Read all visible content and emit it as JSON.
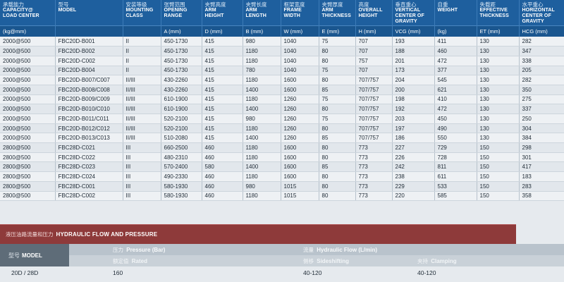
{
  "spec_table": {
    "headers": [
      {
        "cn": "承载能力",
        "en": [
          "CAPACITY@",
          "LOAD CENTER"
        ]
      },
      {
        "cn": "型号",
        "en": [
          "MODEL"
        ]
      },
      {
        "cn": "安装等级",
        "en": [
          "MOUNTING",
          "CLASS"
        ]
      },
      {
        "cn": "张臂范围",
        "en": [
          "OPENING",
          "RANGE"
        ]
      },
      {
        "cn": "夹臂高度",
        "en": [
          "ARM",
          "HEIGHT"
        ]
      },
      {
        "cn": "夹臂长度",
        "en": [
          "ARM",
          "LENGTH"
        ]
      },
      {
        "cn": "框架宽度",
        "en": [
          "FRAME",
          "WIDTH"
        ]
      },
      {
        "cn": "夹臂厚度",
        "en": [
          "ARM",
          "THICKNESS"
        ]
      },
      {
        "cn": "高度",
        "en": [
          "OVERALL",
          "HEIGHT"
        ]
      },
      {
        "cn": "垂直重心",
        "en": [
          "VERTICAL",
          "CENTER OF",
          "GRAVITY"
        ]
      },
      {
        "cn": "自重",
        "en": [
          "WEIGHT"
        ]
      },
      {
        "cn": "失载距",
        "en": [
          "EFFECTIVE",
          "THICKNESS"
        ]
      },
      {
        "cn": "水平重心",
        "en": [
          "HORIZONTAL",
          "CENTER OF",
          "GRAVITY"
        ]
      }
    ],
    "units": [
      "(kg@mm)",
      "",
      "",
      "A (mm)",
      "D (mm)",
      "B (mm)",
      "W (mm)",
      "E (mm)",
      "H (mm)",
      "VCG (mm)",
      "(kg)",
      "ET (mm)",
      "HCG (mm)"
    ],
    "rows": [
      [
        "2000@500",
        "FBC20D-B001",
        "II",
        "450-1730",
        "415",
        "980",
        "1040",
        "75",
        "707",
        "193",
        "411",
        "130",
        "282"
      ],
      [
        "2000@500",
        "FBC20D-B002",
        "II",
        "450-1730",
        "415",
        "1180",
        "1040",
        "80",
        "707",
        "188",
        "460",
        "130",
        "347"
      ],
      [
        "2000@500",
        "FBC20D-C002",
        "II",
        "450-1730",
        "415",
        "1180",
        "1040",
        "80",
        "757",
        "201",
        "472",
        "130",
        "338"
      ],
      [
        "2000@500",
        "FBC20D-B004",
        "II",
        "450-1730",
        "415",
        "780",
        "1040",
        "75",
        "707",
        "173",
        "377",
        "130",
        "205"
      ],
      [
        "2000@500",
        "FBC20D-B007/C007",
        "II/III",
        "430-2260",
        "415",
        "1180",
        "1600",
        "80",
        "707/757",
        "204",
        "545",
        "130",
        "282"
      ],
      [
        "2000@500",
        "FBC20D-B008/C008",
        "II/III",
        "430-2260",
        "415",
        "1400",
        "1600",
        "85",
        "707/757",
        "200",
        "621",
        "130",
        "350"
      ],
      [
        "2000@500",
        "FBC20D-B009/C009",
        "II/III",
        "610-1900",
        "415",
        "1180",
        "1260",
        "75",
        "707/757",
        "198",
        "410",
        "130",
        "275"
      ],
      [
        "2000@500",
        "FBC20D-B010/C010",
        "II/III",
        "610-1900",
        "415",
        "1400",
        "1260",
        "80",
        "707/757",
        "192",
        "472",
        "130",
        "337"
      ],
      [
        "2000@500",
        "FBC20D-B011/C011",
        "II/III",
        "520-2100",
        "415",
        "980",
        "1260",
        "75",
        "707/757",
        "203",
        "450",
        "130",
        "250"
      ],
      [
        "2000@500",
        "FBC20D-B012/C012",
        "II/III",
        "520-2100",
        "415",
        "1180",
        "1260",
        "80",
        "707/757",
        "197",
        "490",
        "130",
        "304"
      ],
      [
        "2000@500",
        "FBC20D-B013/C013",
        "II/III",
        "510-2080",
        "415",
        "1400",
        "1260",
        "85",
        "707/757",
        "186",
        "550",
        "130",
        "384"
      ],
      [
        "2800@500",
        "FBC28D-C021",
        "III",
        "660-2500",
        "460",
        "1180",
        "1600",
        "80",
        "773",
        "227",
        "729",
        "150",
        "298"
      ],
      [
        "2800@500",
        "FBC28D-C022",
        "III",
        "480-2310",
        "460",
        "1180",
        "1600",
        "80",
        "773",
        "226",
        "728",
        "150",
        "301"
      ],
      [
        "2800@500",
        "FBC28D-C023",
        "III",
        "570-2400",
        "580",
        "1400",
        "1600",
        "85",
        "773",
        "242",
        "811",
        "150",
        "417"
      ],
      [
        "2800@500",
        "FBC28D-C024",
        "III",
        "490-2330",
        "460",
        "1180",
        "1600",
        "80",
        "773",
        "238",
        "611",
        "150",
        "183"
      ],
      [
        "2800@500",
        "FBC28D-C001",
        "III",
        "580-1930",
        "460",
        "980",
        "1015",
        "80",
        "773",
        "229",
        "533",
        "150",
        "283"
      ],
      [
        "2800@500",
        "FBC28D-C002",
        "III",
        "580-1930",
        "460",
        "1180",
        "1015",
        "80",
        "773",
        "220",
        "585",
        "150",
        "358"
      ]
    ]
  },
  "hydraulic": {
    "title_cn": "液压油路流量和压力",
    "title_en": "HYDRAULIC FLOW AND PRESSURE",
    "model_cn": "型号",
    "model_en": "MODEL",
    "pressure_cn": "压力",
    "pressure_en": "Pressure (Bar)",
    "flow_cn": "流量",
    "flow_en": "Hydraulic Flow (L/min)",
    "rated_cn": "额定值",
    "rated_en": "Rated",
    "sideshift_cn": "侧移",
    "sideshift_en": "Sideshifting",
    "clamping_cn": "夹持",
    "clamping_en": "Clamping",
    "model_value": "20D / 28D",
    "rated_value": "160",
    "sideshift_value": "40-120",
    "clamping_value": "40-120"
  },
  "colors": {
    "header_blue": "#1e5f9e",
    "hydraulic_red": "#8e3a3a",
    "model_gray": "#5e6c78"
  }
}
